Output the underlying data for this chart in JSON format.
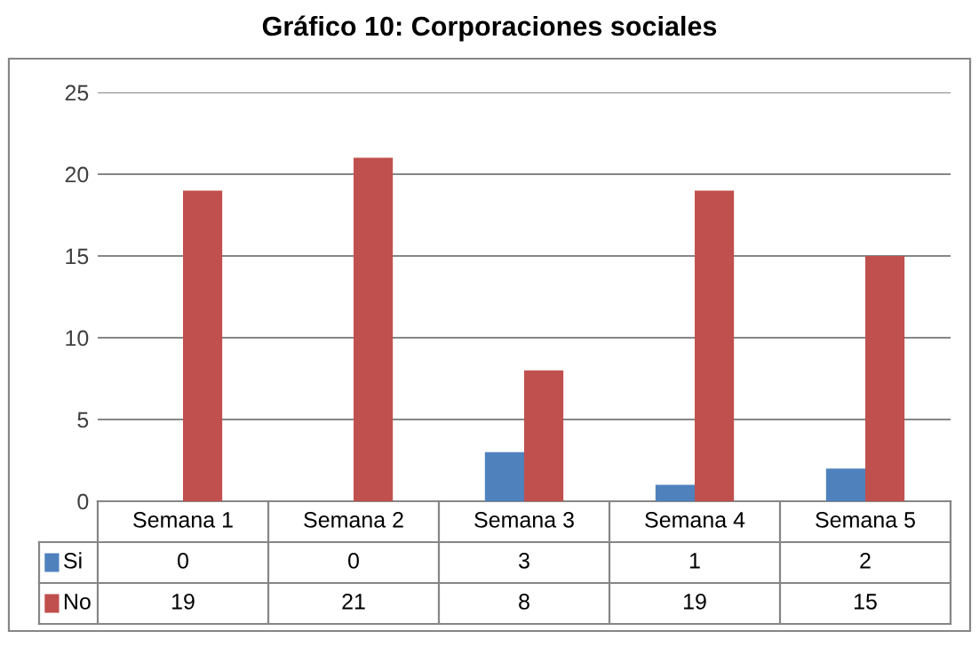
{
  "chart_data": {
    "type": "bar",
    "title": "Gráfico 10: Corporaciones sociales",
    "categories": [
      "Semana 1",
      "Semana 2",
      "Semana 3",
      "Semana 4",
      "Semana 5"
    ],
    "series": [
      {
        "name": "Si",
        "color": "#4f81bd",
        "values": [
          0,
          0,
          3,
          1,
          2
        ]
      },
      {
        "name": "No",
        "color": "#c0504d",
        "values": [
          19,
          21,
          8,
          19,
          15
        ]
      }
    ],
    "ylim": [
      0,
      25
    ],
    "yticks": [
      0,
      5,
      10,
      15,
      20,
      25
    ],
    "grid": "y",
    "legend": "bottom",
    "data_labels": true
  }
}
